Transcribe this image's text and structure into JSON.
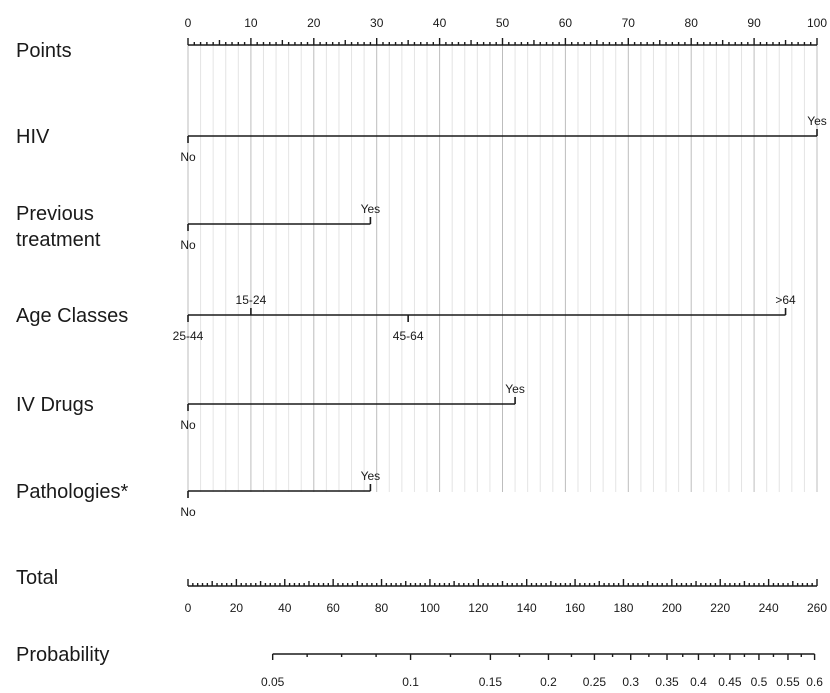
{
  "chart_data": {
    "type": "nomogram",
    "points_axis": {
      "label": "Points",
      "min": 0,
      "max": 100,
      "major_ticks": [
        0,
        10,
        20,
        30,
        40,
        50,
        60,
        70,
        80,
        90,
        100
      ]
    },
    "variables": [
      {
        "label": "HIV",
        "levels": [
          {
            "name": "No",
            "points": 0
          },
          {
            "name": "Yes",
            "points": 100
          }
        ]
      },
      {
        "label": "Previous treatment",
        "label_lines": [
          "Previous",
          "treatment"
        ],
        "levels": [
          {
            "name": "No",
            "points": 0
          },
          {
            "name": "Yes",
            "points": 29
          }
        ]
      },
      {
        "label": "Age Classes",
        "levels": [
          {
            "name": "25-44",
            "points": 0
          },
          {
            "name": "15-24",
            "points": 10
          },
          {
            "name": "45-64",
            "points": 35
          },
          {
            "name": ">64",
            "points": 95
          }
        ]
      },
      {
        "label": "IV Drugs",
        "levels": [
          {
            "name": "No",
            "points": 0
          },
          {
            "name": "Yes",
            "points": 52
          }
        ]
      },
      {
        "label": "Pathologies*",
        "levels": [
          {
            "name": "No",
            "points": 0
          },
          {
            "name": "Yes",
            "points": 29
          }
        ]
      }
    ],
    "total_axis": {
      "label": "Total",
      "min": 0,
      "max": 260,
      "major_ticks": [
        0,
        20,
        40,
        60,
        80,
        100,
        120,
        140,
        160,
        180,
        200,
        220,
        240,
        260
      ]
    },
    "probability_axis": {
      "label": "Probability",
      "tick_values": [
        0.05,
        0.1,
        0.15,
        0.2,
        0.25,
        0.3,
        0.35,
        0.4,
        0.45,
        0.5,
        0.55,
        0.6
      ],
      "tick_labels": [
        "0.05",
        "0.1",
        "0.15",
        "0.2",
        "0.25",
        "0.3",
        "0.35",
        "0.4",
        "0.45",
        "0.5",
        "0.55",
        "0.6"
      ],
      "total_points_at_ticks": [
        35,
        92,
        125,
        149,
        168,
        183,
        198,
        211,
        224,
        236,
        248,
        259
      ]
    }
  }
}
